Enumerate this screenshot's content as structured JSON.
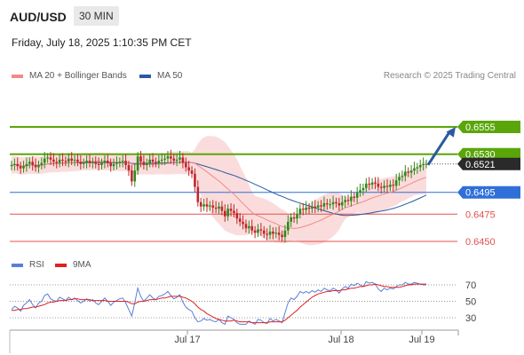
{
  "header": {
    "symbol": "AUD/USD",
    "timeframe": "30 MIN",
    "datetime": "Friday, July 18, 2025 1:10:35 PM CET"
  },
  "legend": {
    "bollinger": {
      "label": "MA 20 + Bollinger Bands",
      "color": "#f08b86"
    },
    "ma50": {
      "label": "MA 50",
      "color": "#2c5aa0"
    },
    "credit": "Research © 2025 Trading Central"
  },
  "rsi_legend": {
    "rsi": {
      "label": "RSI",
      "color": "#5b7fd6"
    },
    "ma9": {
      "label": "9MA",
      "color": "#e02020"
    }
  },
  "colors": {
    "resistance": "#5aa60a",
    "current": "#2a2a2a",
    "pivot": "#2f6fd8",
    "support": "#e35050",
    "bull_candle": "#2e8a1a",
    "bear_candle": "#c0262a",
    "band_fill": "#fbdcdc",
    "arrow": "#2c5aa0"
  },
  "chart_data": [
    {
      "type": "candlestick",
      "title": "",
      "x_ticks": [
        "Jul 17",
        "Jul 18",
        "Jul 19"
      ],
      "ylim": [
        0.644,
        0.658
      ],
      "levels": [
        {
          "value": 0.6555,
          "label": "0.6555",
          "kind": "resistance"
        },
        {
          "value": 0.653,
          "label": "0.6530",
          "kind": "resistance"
        },
        {
          "value": 0.6521,
          "label": "0.6521",
          "kind": "current"
        },
        {
          "value": 0.6495,
          "label": "0.6495",
          "kind": "pivot"
        },
        {
          "value": 0.6475,
          "label": "0.6475",
          "kind": "support"
        },
        {
          "value": 0.645,
          "label": "0.6450",
          "kind": "support"
        }
      ],
      "close": [
        0.652,
        0.6521,
        0.6519,
        0.6517,
        0.6519,
        0.6521,
        0.6523,
        0.652,
        0.6518,
        0.652,
        0.6522,
        0.6526,
        0.6527,
        0.6525,
        0.6523,
        0.6522,
        0.6525,
        0.6524,
        0.6523,
        0.6526,
        0.6524,
        0.6525,
        0.6523,
        0.6521,
        0.6522,
        0.6524,
        0.6522,
        0.6523,
        0.6521,
        0.652,
        0.6522,
        0.6524,
        0.6522,
        0.6519,
        0.6521,
        0.6522,
        0.6523,
        0.6524,
        0.652,
        0.6515,
        0.6505,
        0.6515,
        0.6528,
        0.6523,
        0.652,
        0.6522,
        0.6525,
        0.6523,
        0.6522,
        0.6524,
        0.6525,
        0.6526,
        0.6528,
        0.6526,
        0.6524,
        0.6525,
        0.6527,
        0.6522,
        0.6518,
        0.6515,
        0.6512,
        0.65,
        0.6486,
        0.6482,
        0.6484,
        0.6482,
        0.6483,
        0.6481,
        0.648,
        0.6482,
        0.6478,
        0.6473,
        0.648,
        0.6478,
        0.6476,
        0.6471,
        0.6468,
        0.6466,
        0.6462,
        0.6464,
        0.646,
        0.6458,
        0.6461,
        0.646,
        0.6457,
        0.6456,
        0.6459,
        0.6457,
        0.6458,
        0.6456,
        0.6454,
        0.646,
        0.6468,
        0.6472,
        0.6471,
        0.6475,
        0.648,
        0.6479,
        0.6481,
        0.648,
        0.6482,
        0.6481,
        0.6483,
        0.6482,
        0.6485,
        0.6484,
        0.6484,
        0.6486,
        0.6485,
        0.6483,
        0.6486,
        0.6488,
        0.6487,
        0.6491,
        0.649,
        0.6495,
        0.6497,
        0.6499,
        0.6503,
        0.6502,
        0.6504,
        0.6503,
        0.65,
        0.6499,
        0.6501,
        0.65,
        0.6502,
        0.6501,
        0.6506,
        0.6509,
        0.651,
        0.6514,
        0.6513,
        0.6515,
        0.6517,
        0.6518,
        0.652,
        0.6521,
        0.6521
      ]
    },
    {
      "type": "line",
      "title": "RSI",
      "ylim": [
        20,
        80
      ],
      "y_ticks": [
        70,
        50,
        30
      ],
      "series": [
        {
          "name": "RSI",
          "values": [
            40,
            44,
            42,
            38,
            45,
            48,
            52,
            46,
            42,
            48,
            50,
            57,
            59,
            53,
            51,
            50,
            55,
            53,
            51,
            55,
            52,
            54,
            51,
            48,
            50,
            53,
            50,
            52,
            48,
            46,
            50,
            54,
            50,
            45,
            49,
            51,
            53,
            54,
            48,
            40,
            32,
            48,
            66,
            56,
            50,
            54,
            58,
            54,
            52,
            56,
            57,
            59,
            62,
            57,
            53,
            55,
            58,
            49,
            43,
            40,
            38,
            30,
            25,
            26,
            29,
            27,
            28,
            26,
            25,
            28,
            24,
            22,
            32,
            30,
            28,
            24,
            22,
            22,
            22,
            26,
            24,
            22,
            28,
            27,
            24,
            23,
            29,
            26,
            28,
            26,
            24,
            36,
            48,
            54,
            52,
            56,
            62,
            60,
            62,
            60,
            63,
            61,
            64,
            62,
            66,
            64,
            63,
            66,
            64,
            60,
            65,
            68,
            66,
            71,
            69,
            72,
            70,
            68,
            74,
            72,
            73,
            71,
            65,
            62,
            66,
            64,
            66,
            65,
            68,
            70,
            70,
            73,
            71,
            71,
            73,
            72,
            71,
            70,
            70
          ]
        },
        {
          "name": "9MA",
          "values": [
            39,
            39,
            40,
            40,
            41,
            41,
            42,
            43,
            43,
            44,
            45,
            46,
            48,
            49,
            49,
            50,
            51,
            51,
            51,
            52,
            52,
            53,
            53,
            52,
            52,
            52,
            52,
            51,
            51,
            51,
            51,
            51,
            50,
            50,
            50,
            50,
            50,
            50,
            50,
            49,
            47,
            47,
            49,
            50,
            50,
            51,
            52,
            52,
            52,
            53,
            54,
            54,
            55,
            56,
            56,
            56,
            56,
            55,
            54,
            52,
            50,
            47,
            43,
            40,
            38,
            35,
            33,
            31,
            29,
            28,
            27,
            26,
            26,
            26,
            27,
            26,
            25,
            25,
            25,
            25,
            24,
            24,
            24,
            24,
            24,
            24,
            25,
            25,
            25,
            25,
            25,
            27,
            30,
            33,
            36,
            39,
            43,
            46,
            49,
            52,
            55,
            57,
            59,
            60,
            61,
            62,
            62,
            63,
            63,
            63,
            64,
            64,
            65,
            66,
            66,
            67,
            68,
            68,
            69,
            70,
            70,
            71,
            70,
            69,
            68,
            68,
            67,
            67,
            67,
            67,
            68,
            69,
            70,
            70,
            71,
            71,
            71,
            71,
            71
          ]
        }
      ]
    }
  ]
}
